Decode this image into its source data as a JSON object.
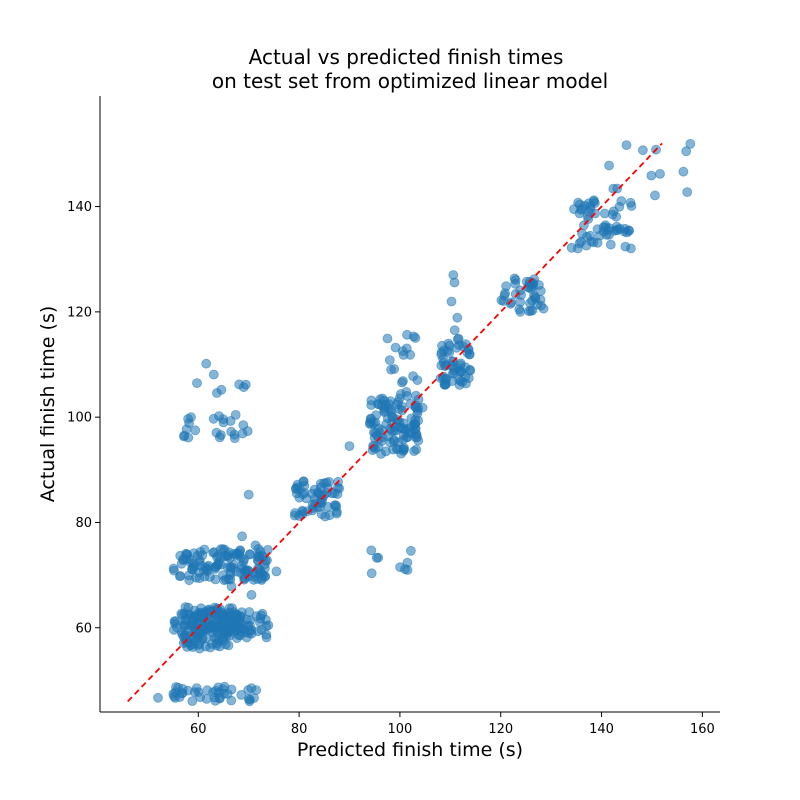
{
  "chart_data": {
    "type": "scatter",
    "title_lines": [
      "Actual vs predicted finish times",
      "on test set from optimized linear model"
    ],
    "xlabel": "Predicted finish time (s)",
    "ylabel": "Actual finish time (s)",
    "xlim": [
      40.5,
      163.5
    ],
    "ylim": [
      44,
      161
    ],
    "xticks": [
      60,
      80,
      100,
      120,
      140,
      160
    ],
    "yticks": [
      60,
      80,
      100,
      120,
      140
    ],
    "point_color": "#1f77b4",
    "point_alpha": 0.55,
    "reference_line": {
      "from": [
        46,
        46
      ],
      "to": [
        152,
        152
      ],
      "color": "#ff0000",
      "style": "dashed"
    },
    "grid": false,
    "spines": "left-bottom",
    "clusters": [
      {
        "x": [
          55,
          74
        ],
        "y": [
          58,
          63
        ],
        "n": 120
      },
      {
        "x": [
          57,
          67
        ],
        "y": [
          56,
          64
        ],
        "n": 100
      },
      {
        "x": [
          55,
          74
        ],
        "y": [
          69,
          75
        ],
        "n": 120
      },
      {
        "x": [
          55,
          72
        ],
        "y": [
          46,
          49
        ],
        "n": 40
      },
      {
        "x": [
          57,
          71
        ],
        "y": [
          96,
          101
        ],
        "n": 22
      },
      {
        "x": [
          58,
          70
        ],
        "y": [
          103,
          111
        ],
        "n": 7
      },
      {
        "x": [
          62,
          72
        ],
        "y": [
          63,
          79
        ],
        "n": 12
      },
      {
        "x": [
          79,
          88
        ],
        "y": [
          81,
          88
        ],
        "n": 60
      },
      {
        "x": [
          94,
          104
        ],
        "y": [
          93,
          104
        ],
        "n": 110
      },
      {
        "x": [
          97,
          104
        ],
        "y": [
          104,
          116
        ],
        "n": 20
      },
      {
        "x": [
          94,
          103
        ],
        "y": [
          70,
          76
        ],
        "n": 9
      },
      {
        "x": [
          108,
          114
        ],
        "y": [
          106,
          114
        ],
        "n": 55
      },
      {
        "x": [
          110,
          112
        ],
        "y": [
          114,
          127
        ],
        "n": 6
      },
      {
        "x": [
          120,
          128
        ],
        "y": [
          120,
          127
        ],
        "n": 40
      },
      {
        "x": [
          134,
          146
        ],
        "y": [
          132,
          142
        ],
        "n": 60
      },
      {
        "x": [
          140,
          158
        ],
        "y": [
          142,
          152
        ],
        "n": 8
      }
    ],
    "marked_points": [
      {
        "x": 52,
        "y": 46.7
      },
      {
        "x": 70,
        "y": 85.3
      },
      {
        "x": 110.6,
        "y": 127
      },
      {
        "x": 141.5,
        "y": 147.8
      },
      {
        "x": 151.6,
        "y": 146.2
      },
      {
        "x": 156.8,
        "y": 150.5
      },
      {
        "x": 157.6,
        "y": 151.9
      },
      {
        "x": 150.8,
        "y": 150.8
      },
      {
        "x": 128.5,
        "y": 120.6
      },
      {
        "x": 104.5,
        "y": 101.8
      },
      {
        "x": 90,
        "y": 94.5
      },
      {
        "x": 73.5,
        "y": 58.7
      },
      {
        "x": 75.5,
        "y": 70.7
      },
      {
        "x": 65,
        "y": 99
      },
      {
        "x": 69,
        "y": 105.7
      }
    ]
  }
}
